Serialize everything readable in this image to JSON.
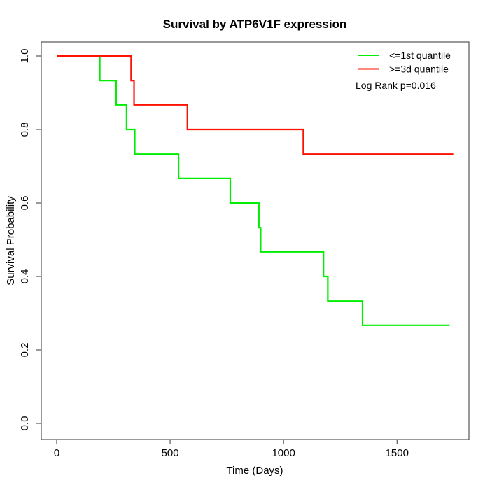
{
  "chart_data": {
    "type": "line",
    "variant": "kaplan_meier_step",
    "title": "Survival by ATP6V1F expression",
    "xlabel": "Time (Days)",
    "ylabel": "Survival Probability",
    "grid": false,
    "legend_position": "top-right",
    "annotation": "Log Rank p=0.016",
    "xlim": [
      -70,
      1815
    ],
    "ylim": [
      -0.04,
      1.04
    ],
    "x_ticks": [
      {
        "value": 0,
        "label": "0"
      },
      {
        "value": 500,
        "label": "500"
      },
      {
        "value": 1000,
        "label": "1000"
      },
      {
        "value": 1500,
        "label": "1500"
      }
    ],
    "y_ticks": [
      {
        "value": 0.0,
        "label": "0.0"
      },
      {
        "value": 0.2,
        "label": "0.2"
      },
      {
        "value": 0.4,
        "label": "0.4"
      },
      {
        "value": 0.6,
        "label": "0.6"
      },
      {
        "value": 0.8,
        "label": "0.8"
      },
      {
        "value": 1.0,
        "label": "1.0"
      }
    ],
    "series": [
      {
        "name": "<=1st quantile",
        "color": "#00ee00",
        "points": [
          [
            0,
            1.0
          ],
          [
            190,
            0.933
          ],
          [
            262,
            0.867
          ],
          [
            308,
            0.8
          ],
          [
            344,
            0.733
          ],
          [
            537,
            0.667
          ],
          [
            765,
            0.6
          ],
          [
            891,
            0.533
          ],
          [
            899,
            0.467
          ],
          [
            1176,
            0.4
          ],
          [
            1195,
            0.333
          ],
          [
            1348,
            0.267
          ]
        ],
        "end_day": 1732
      },
      {
        "name": ">=3d quantile",
        "color": "#ff1100",
        "points": [
          [
            0,
            1.0
          ],
          [
            328,
            0.933
          ],
          [
            341,
            0.867
          ],
          [
            576,
            0.8
          ],
          [
            1087,
            0.733
          ]
        ],
        "end_day": 1748
      }
    ]
  }
}
